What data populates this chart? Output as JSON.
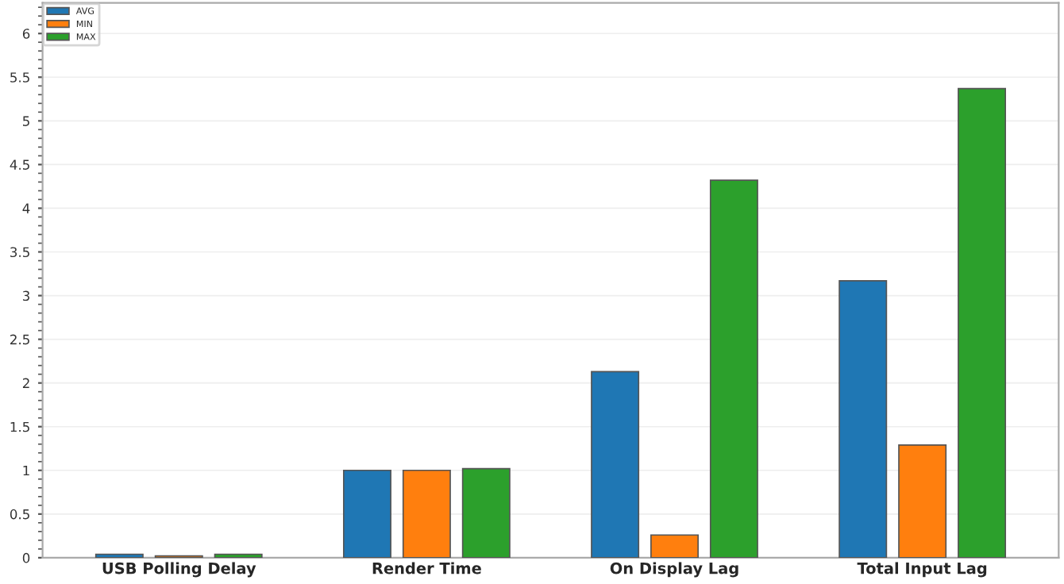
{
  "chart_data": {
    "type": "bar",
    "categories": [
      "USB Polling Delay",
      "Render Time",
      "On Display Lag",
      "Total Input Lag"
    ],
    "series": [
      {
        "name": "AVG",
        "color": "#1f77b4",
        "values": [
          0.04,
          1.0,
          2.13,
          3.17
        ]
      },
      {
        "name": "MIN",
        "color": "#ff7f0e",
        "values": [
          0.02,
          1.0,
          0.26,
          1.29
        ]
      },
      {
        "name": "MAX",
        "color": "#2ca02c",
        "values": [
          0.04,
          1.02,
          4.32,
          5.37
        ]
      }
    ],
    "ylim": [
      0,
      6.35
    ],
    "yticks": [
      0,
      0.5,
      1,
      1.5,
      2,
      2.5,
      3,
      3.5,
      4,
      4.5,
      5,
      5.5,
      6
    ],
    "grid": "y",
    "legend": "top left"
  }
}
